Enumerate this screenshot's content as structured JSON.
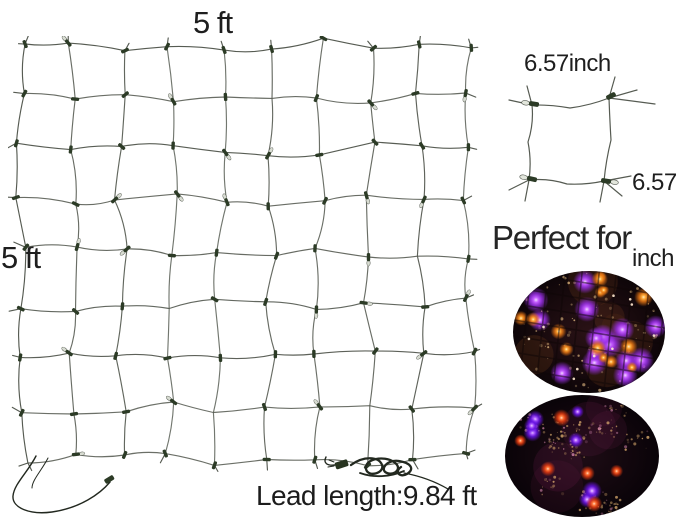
{
  "canvas": {
    "background": "#ffffff",
    "text_color": "#1e1e1e"
  },
  "labels": {
    "net_width": "5 ft",
    "net_height": "5 ft",
    "cell_width": "6.57inch",
    "cell_height": [
      "6.57",
      "inch"
    ],
    "section_title": "Perfect for",
    "lead_length": "Lead length:9.84 ft"
  },
  "net_diagram": {
    "columns": 9,
    "rows": 8,
    "wire_color": "#565b52",
    "bulb_color": "#2c3b26",
    "bulb_tip_color": "#d8dcd2",
    "cord_color": "#22281f"
  },
  "cell_diagram": {
    "wire_color": "#565b52",
    "bulb_color": "#2c3b26",
    "bulb_tip_color": "#e2e6dc"
  },
  "photos": {
    "net_lights": {
      "caption": "net lights close-up",
      "background_center": "#2a1216",
      "background_edge": "#0d0508",
      "bulb_colors": {
        "purple": "#9a2fe8",
        "orange": "#e87714"
      },
      "purple_count": 15,
      "orange_count": 14,
      "sparkle_color": "#ecc488",
      "sparkle_count": 90,
      "grid_color": "#0f0607"
    },
    "tree_lights": {
      "caption": "lights on dark tree",
      "background_center": "#1e0c15",
      "background_edge": "#090308",
      "bulb_colors": {
        "purple": "#6a14e8",
        "red": "#e83c10"
      },
      "purple_count": 7,
      "red_count": 6,
      "sparkle_color": "#e0b070",
      "sparkle_count": 200,
      "patch_color": "#7a2456"
    }
  }
}
